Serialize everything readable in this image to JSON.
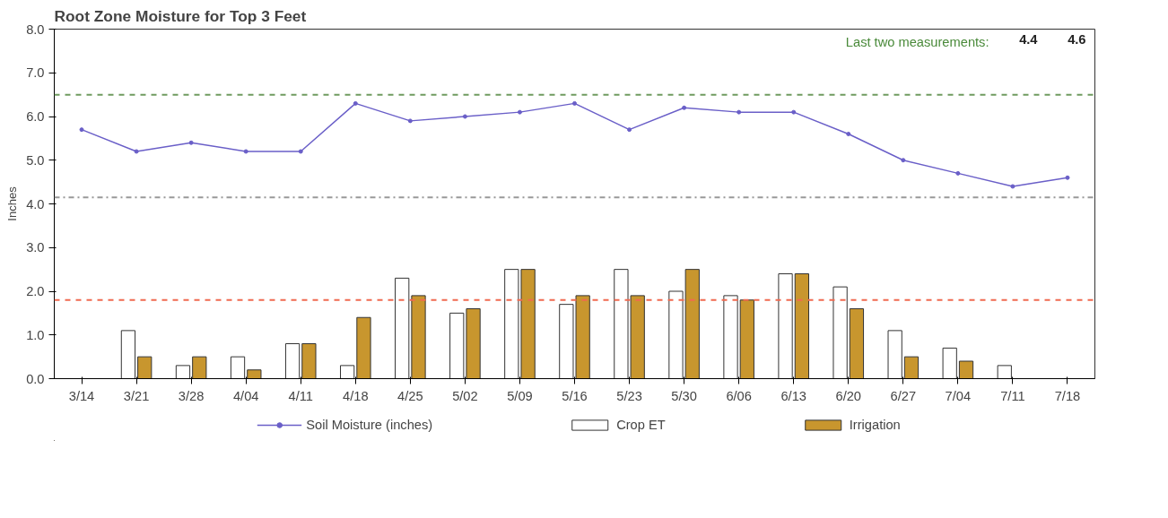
{
  "chart_data": {
    "type": "bar",
    "title": "Root Zone Moisture for Top 3 Feet",
    "ylabel": "Inches",
    "annotations": [
      "Last two measurements:",
      "4.4",
      "4.6"
    ],
    "categories": [
      "3/14",
      "3/21",
      "3/28",
      "4/04",
      "4/11",
      "4/18",
      "4/25",
      "5/02",
      "5/09",
      "5/16",
      "5/23",
      "5/30",
      "6/06",
      "6/13",
      "6/20",
      "6/27",
      "7/04",
      "7/11",
      "7/18"
    ],
    "series": [
      {
        "name": "Soil Moisture (inches)",
        "type": "line",
        "color": "#6a5fc8",
        "marker": "circle",
        "values": [
          5.7,
          5.2,
          5.4,
          5.2,
          5.2,
          6.3,
          5.9,
          6.0,
          6.1,
          6.3,
          5.7,
          6.2,
          6.1,
          6.1,
          5.6,
          5.0,
          4.7,
          4.4,
          4.6
        ]
      },
      {
        "name": "Crop ET",
        "color": "#ffffff",
        "values": [
          0,
          1.1,
          0.3,
          0.5,
          0.8,
          0.3,
          2.3,
          1.5,
          2.5,
          1.7,
          2.5,
          2.0,
          1.9,
          2.4,
          2.1,
          1.1,
          0.7,
          0.3,
          0
        ]
      },
      {
        "name": "Irrigation",
        "color": "#c8962e",
        "values": [
          0,
          0.5,
          0.5,
          0.2,
          0.8,
          1.4,
          1.9,
          1.6,
          2.5,
          1.9,
          1.9,
          2.5,
          1.8,
          2.4,
          1.6,
          0.5,
          0.4,
          0,
          0
        ]
      }
    ],
    "ref_lines": [
      {
        "axis": "y",
        "value": 6.5,
        "color": "#6f9a5f",
        "line_style": "dashed"
      },
      {
        "axis": "y",
        "value": 4.15,
        "color": "#999999",
        "line_style": "dashdot"
      },
      {
        "axis": "y",
        "value": 1.8,
        "color": "#f06a50",
        "line_style": "dashed"
      }
    ],
    "ylim": [
      0,
      8
    ],
    "yticks": [
      {
        "value": 0,
        "label": "0.0"
      },
      {
        "value": 1,
        "label": "1.0"
      },
      {
        "value": 2,
        "label": "2.0"
      },
      {
        "value": 3,
        "label": "3.0"
      },
      {
        "value": 4,
        "label": "4.0"
      },
      {
        "value": 5,
        "label": "5.0"
      },
      {
        "value": 6,
        "label": "6.0"
      },
      {
        "value": 7,
        "label": "7.0"
      },
      {
        "value": 8,
        "label": "8.0"
      }
    ],
    "grid": false,
    "legend": "bottom"
  }
}
